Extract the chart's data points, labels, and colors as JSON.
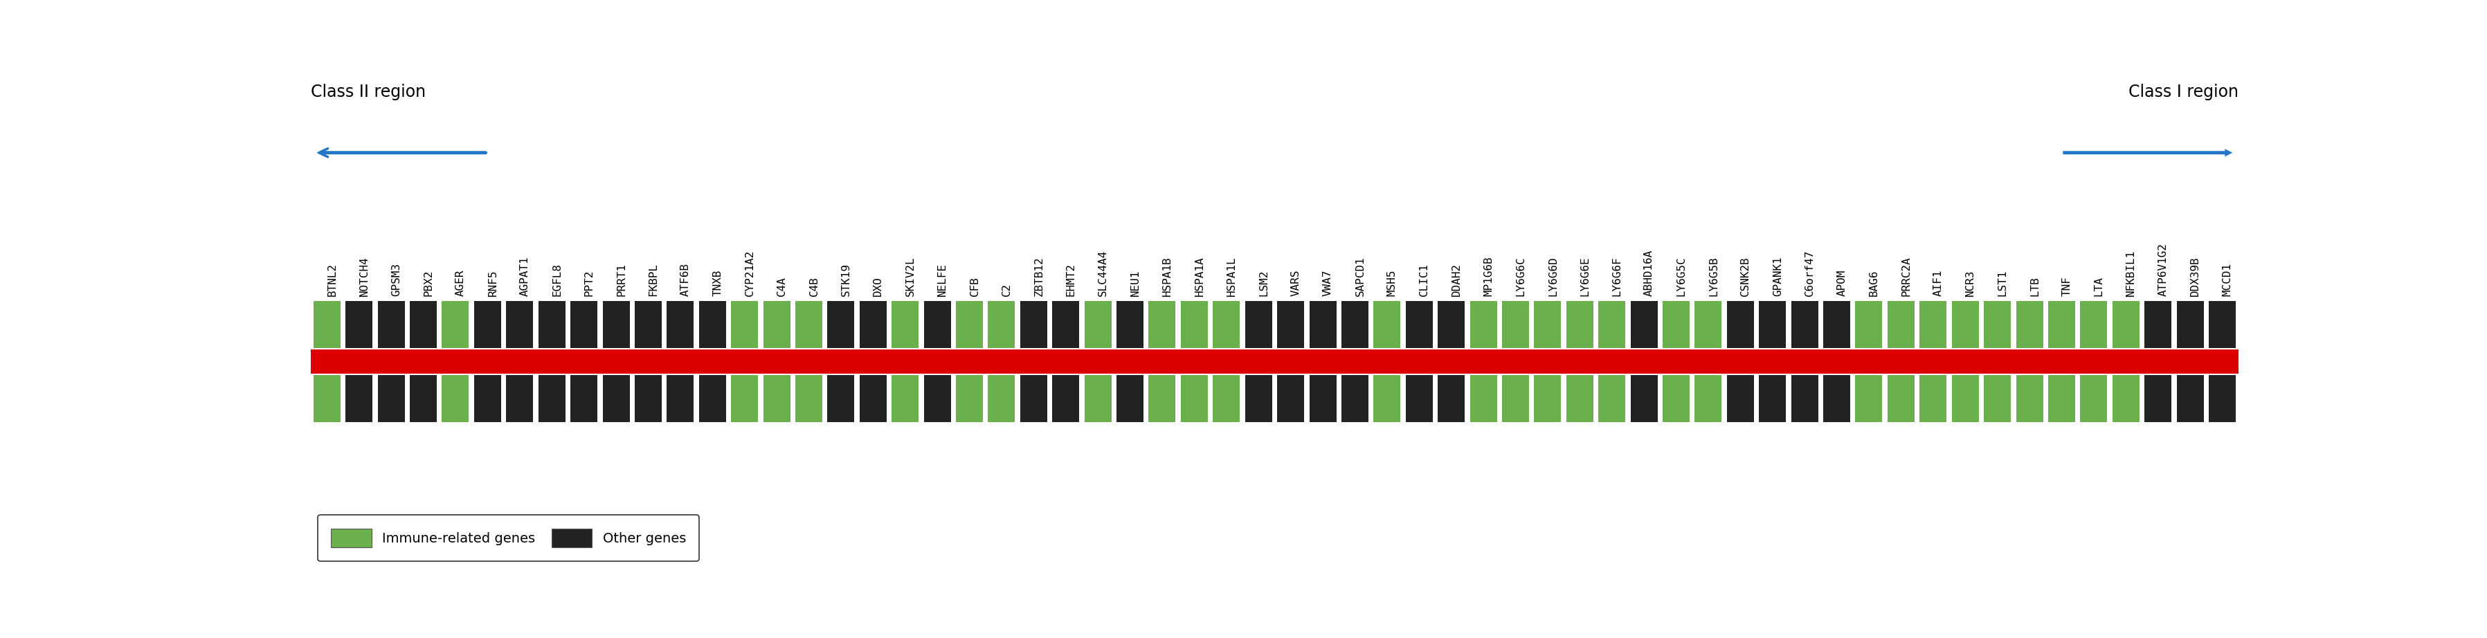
{
  "genes": [
    "BTNL2",
    "NOTCH4",
    "GPSM3",
    "PBX2",
    "AGER",
    "RNF5",
    "AGPAT1",
    "EGFL8",
    "PPT2",
    "PRRT1",
    "FKBPL",
    "ATF6B",
    "TNXB",
    "CYP21A2",
    "C4A",
    "C4B",
    "STK19",
    "DXO",
    "SKIV2L",
    "NELFE",
    "CFB",
    "C2",
    "ZBTB12",
    "EHMT2",
    "SLC44A4",
    "NEU1",
    "HSPA1B",
    "HSPA1A",
    "HSPA1L",
    "LSM2",
    "VARS",
    "VWA7",
    "SAPCD1",
    "MSH5",
    "CLIC1",
    "DDAH2",
    "MP1G6B",
    "LY6G6C",
    "LY6G6D",
    "LY6G6E",
    "LY6G6F",
    "ABHD16A",
    "LY6G5C",
    "LY6G5B",
    "CSNK2B",
    "GPANK1",
    "C6orf47",
    "APOM",
    "BAG6",
    "PRRC2A",
    "AIF1",
    "NCR3",
    "LST1",
    "LTB",
    "TNF",
    "LTA",
    "NFKBIL1",
    "ATP6V1G2",
    "DDX39B",
    "MCCD1"
  ],
  "immune": [
    true,
    false,
    false,
    false,
    true,
    false,
    false,
    false,
    false,
    false,
    false,
    false,
    false,
    true,
    true,
    true,
    false,
    false,
    true,
    false,
    true,
    true,
    false,
    false,
    true,
    false,
    true,
    true,
    true,
    false,
    false,
    false,
    false,
    true,
    false,
    false,
    true,
    true,
    true,
    true,
    true,
    false,
    true,
    true,
    false,
    false,
    false,
    false,
    true,
    true,
    true,
    true,
    true,
    true,
    true,
    true,
    true,
    false,
    false,
    false
  ],
  "green_color": "#6ab04c",
  "black_color": "#222222",
  "red_color": "#dd0000",
  "arrow_color": "#2176c7",
  "bg_color": "#ffffff",
  "title_left": "Class II region",
  "title_right": "Class I region",
  "legend_immune": "Immune-related genes",
  "legend_other": "Other genes",
  "label_fontsize": 11.5,
  "title_fontsize": 17
}
